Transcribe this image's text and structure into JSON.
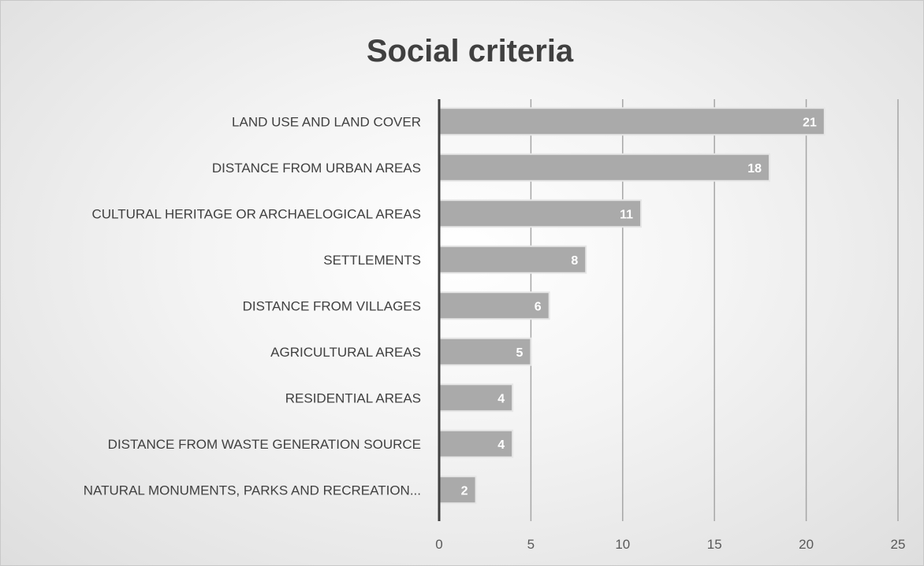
{
  "chart_data": {
    "type": "bar",
    "orientation": "horizontal",
    "title": "Social criteria",
    "xlabel": "",
    "ylabel": "",
    "categories": [
      "LAND USE AND LAND COVER",
      "DISTANCE FROM URBAN AREAS",
      "CULTURAL HERITAGE OR ARCHAELOGICAL AREAS",
      "SETTLEMENTS",
      "DISTANCE FROM VILLAGES",
      "AGRICULTURAL AREAS",
      "RESIDENTIAL AREAS",
      "DISTANCE FROM WASTE GENERATION SOURCE",
      "NATURAL MONUMENTS, PARKS AND RECREATION..."
    ],
    "values": [
      21,
      18,
      11,
      8,
      6,
      5,
      4,
      4,
      2
    ],
    "xlim": [
      0,
      25
    ],
    "ticks": [
      "0",
      "5",
      "10",
      "15",
      "20",
      "25"
    ],
    "grid": "vertical",
    "legend": "none",
    "data_labels": "inside-end",
    "colors": {
      "bar": "#aaaaaa",
      "bar_edge": "#e6e6e6",
      "gridline": "#a6a6a6",
      "axis": "#404040",
      "data_label": "#ffffff"
    }
  }
}
